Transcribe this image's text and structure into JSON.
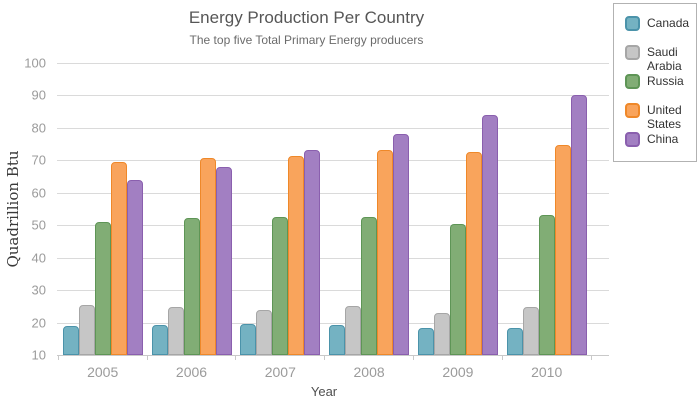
{
  "chart_data": {
    "type": "bar",
    "title": "Energy Production Per Country",
    "subtitle": "The top five Total Primary Energy producers",
    "xlabel": "Year",
    "ylabel": "Quadrillion Btu",
    "ylim": [
      10,
      100
    ],
    "yticks": [
      10,
      20,
      30,
      40,
      50,
      60,
      70,
      80,
      90,
      100
    ],
    "grid": true,
    "legend_position": "top-right-outside",
    "categories": [
      "2005",
      "2006",
      "2007",
      "2008",
      "2009",
      "2010"
    ],
    "series": [
      {
        "name": "Canada",
        "fill": "#74b2c2",
        "border": "#4b93aa",
        "values": [
          19.0,
          19.3,
          19.5,
          19.2,
          18.4,
          18.2
        ]
      },
      {
        "name": "Saudi Arabia",
        "fill": "#c6c6c6",
        "border": "#a6a6a6",
        "values": [
          25.4,
          24.8,
          23.8,
          25.2,
          22.9,
          24.7
        ]
      },
      {
        "name": "Russia",
        "fill": "#81ad75",
        "border": "#5e9556",
        "values": [
          51.0,
          52.2,
          52.5,
          52.5,
          50.5,
          53.2
        ]
      },
      {
        "name": "United States",
        "fill": "#f9a45c",
        "border": "#ef8829",
        "values": [
          69.4,
          70.7,
          71.4,
          73.1,
          72.5,
          74.7
        ]
      },
      {
        "name": "China",
        "fill": "#a27fc2",
        "border": "#8a5fae",
        "values": [
          63.9,
          68.1,
          73.2,
          78.2,
          84.0,
          90.3
        ]
      }
    ],
    "colors": {
      "gridline": "#dadada",
      "axis_line": "#c9c9c9",
      "tick_label": "#9b9b9b",
      "title_text": "#565656",
      "subtitle_text": "#6b6b6b"
    }
  }
}
